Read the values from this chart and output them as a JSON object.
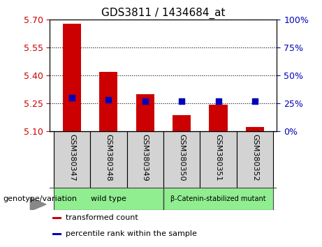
{
  "title": "GDS3811 / 1434684_at",
  "categories": [
    "GSM380347",
    "GSM380348",
    "GSM380349",
    "GSM380350",
    "GSM380351",
    "GSM380352"
  ],
  "bar_values": [
    5.68,
    5.42,
    5.3,
    5.185,
    5.24,
    5.12
  ],
  "bar_base": 5.1,
  "percentile_values": [
    30,
    28,
    27,
    27,
    27,
    27
  ],
  "left_ylim": [
    5.1,
    5.7
  ],
  "right_ylim": [
    0,
    100
  ],
  "left_yticks": [
    5.1,
    5.25,
    5.4,
    5.55,
    5.7
  ],
  "right_yticks": [
    0,
    25,
    50,
    75,
    100
  ],
  "bar_color": "#cc0000",
  "dot_color": "#0000bb",
  "left_tick_color": "#cc0000",
  "right_tick_color": "#0000bb",
  "grid_color": "#000000",
  "plot_bg": "#ffffff",
  "outer_bg": "#ffffff",
  "sample_box_bg": "#d3d3d3",
  "group_labels": [
    "wild type",
    "β-Catenin-stabilized mutant"
  ],
  "group_color": "#90ee90",
  "genotype_label": "genotype/variation",
  "legend_items": [
    "transformed count",
    "percentile rank within the sample"
  ],
  "legend_colors": [
    "#cc0000",
    "#0000bb"
  ],
  "bar_width": 0.5,
  "dot_size": 40,
  "ytick_label_fontsize": 9,
  "xtick_label_fontsize": 8,
  "title_fontsize": 11,
  "legend_fontsize": 8,
  "group_fontsize": 8,
  "genotype_fontsize": 8,
  "figsize": [
    4.61,
    3.54
  ],
  "dpi": 100
}
